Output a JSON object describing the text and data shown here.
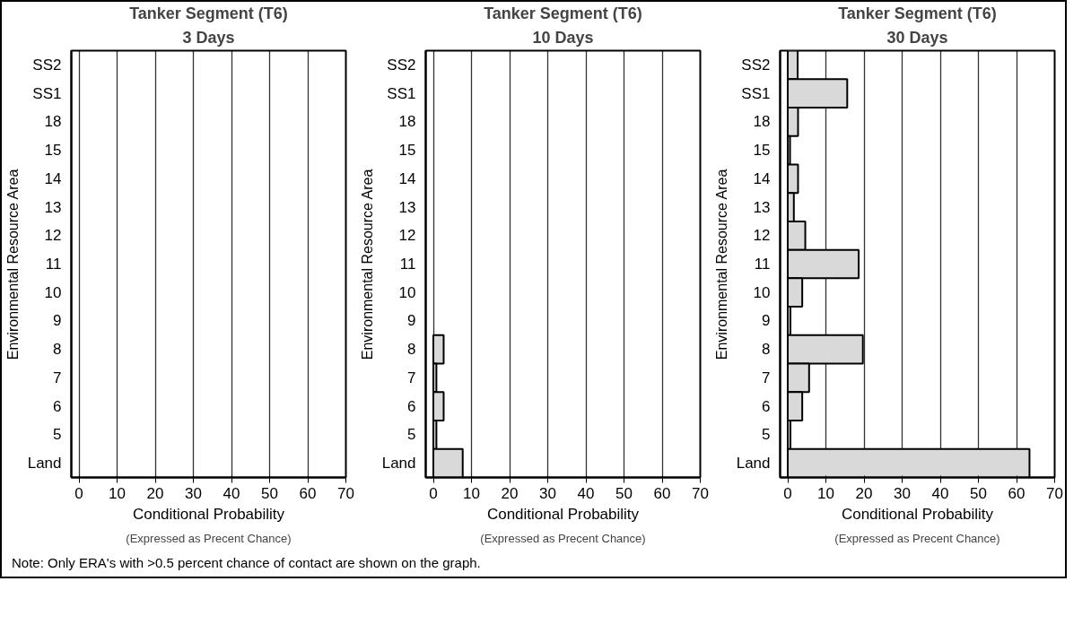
{
  "chart_data": [
    {
      "type": "bar",
      "orientation": "horizontal",
      "title": "Tanker Segment (T6)",
      "subtitle": "3 Days",
      "ylabel": "Environmental Resource Area",
      "xlabel": "Conditional Probability",
      "annotations": [
        "(Expressed as Precent Chance)"
      ],
      "categories": [
        "SS2",
        "SS1",
        "18",
        "15",
        "14",
        "13",
        "12",
        "11",
        "10",
        "9",
        "8",
        "7",
        "6",
        "5",
        "Land"
      ],
      "series": [
        {
          "color": "#d9d9d9",
          "values": [
            null,
            null,
            null,
            null,
            null,
            null,
            null,
            null,
            null,
            null,
            null,
            null,
            null,
            null,
            null
          ]
        }
      ],
      "xlim": [
        -2,
        70
      ],
      "xticks": [
        0,
        10,
        20,
        30,
        40,
        50,
        60,
        70
      ],
      "grid": "x"
    },
    {
      "type": "bar",
      "orientation": "horizontal",
      "title": "Tanker Segment (T6)",
      "subtitle": "10 Days",
      "ylabel": "Environmental Resource Area",
      "xlabel": "Conditional Probability",
      "annotations": [
        "(Expressed as Precent Chance)"
      ],
      "categories": [
        "SS2",
        "SS1",
        "18",
        "15",
        "14",
        "13",
        "12",
        "11",
        "10",
        "9",
        "8",
        "7",
        "6",
        "5",
        "Land"
      ],
      "series": [
        {
          "color": "#d9d9d9",
          "values": [
            null,
            null,
            null,
            null,
            null,
            null,
            null,
            null,
            null,
            null,
            2.7,
            0.8,
            2.7,
            0.8,
            7.7
          ]
        }
      ],
      "xlim": [
        -2,
        70
      ],
      "xticks": [
        0,
        10,
        20,
        30,
        40,
        50,
        60,
        70
      ],
      "grid": "x"
    },
    {
      "type": "bar",
      "orientation": "horizontal",
      "title": "Tanker Segment (T6)",
      "subtitle": "30 Days",
      "ylabel": "Environmental Resource Area",
      "xlabel": "Conditional Probability",
      "annotations": [
        "(Expressed as Precent Chance)",
        "Note: Only ERA's with >0.5 percent chance of contact are shown on the graph."
      ],
      "categories": [
        "SS2",
        "SS1",
        "18",
        "15",
        "14",
        "13",
        "12",
        "11",
        "10",
        "9",
        "8",
        "7",
        "6",
        "5",
        "Land"
      ],
      "series": [
        {
          "color": "#d9d9d9",
          "values": [
            2.6,
            15.6,
            2.7,
            0.6,
            2.7,
            1.6,
            4.6,
            18.6,
            3.8,
            0.7,
            19.7,
            5.6,
            3.8,
            0.7,
            63.4
          ]
        }
      ],
      "xlim": [
        -2,
        70
      ],
      "xticks": [
        0,
        10,
        20,
        30,
        40,
        50,
        60,
        70
      ],
      "grid": "x"
    }
  ]
}
